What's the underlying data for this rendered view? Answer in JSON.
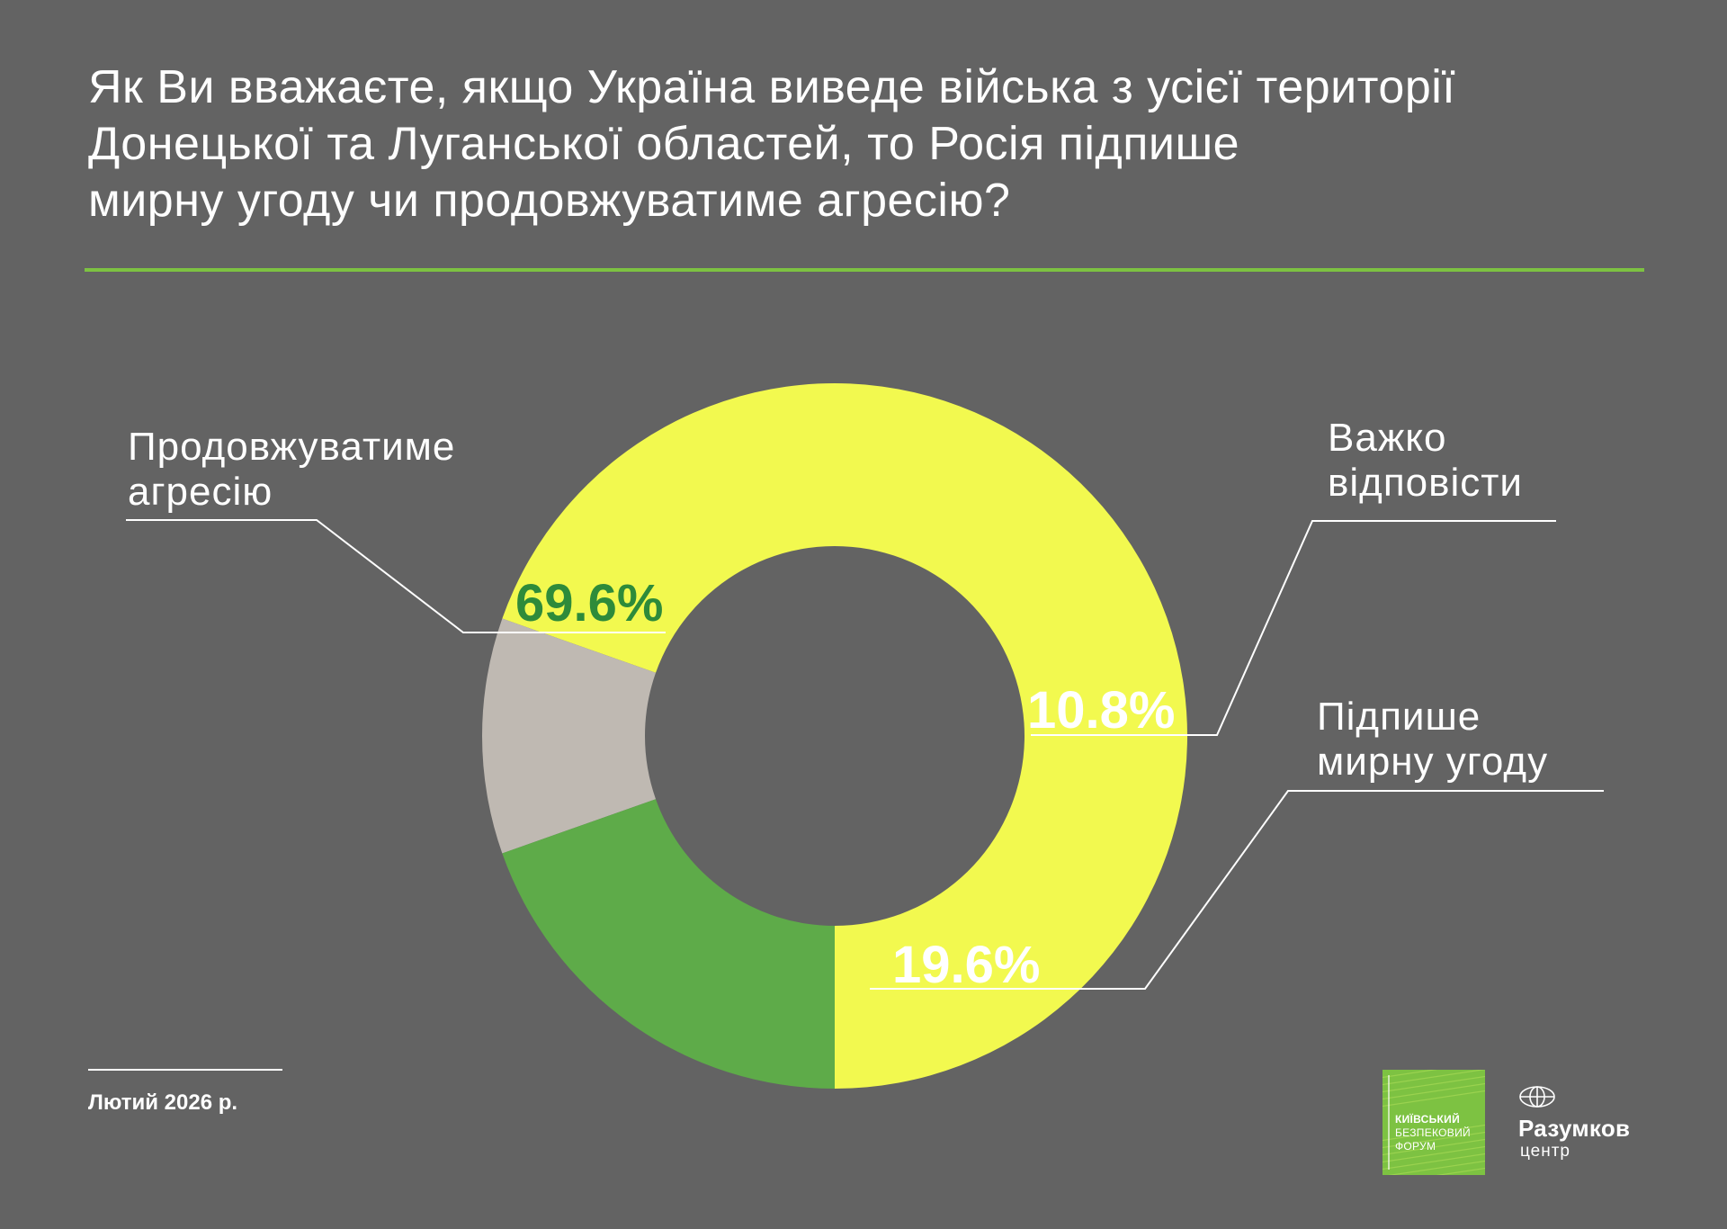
{
  "title": {
    "lines": [
      "Як Ви вважаєте, якщо Україна виведе війська з усієї території",
      "Донецької та Луганської областей, то Росія підпише",
      "мирну угоду чи продовжуватиме агресію?"
    ]
  },
  "chart_data": {
    "type": "pie",
    "donut": true,
    "categories": [
      "Продовжуватиме агресію",
      "Важко відповісти",
      "Підпише мирну угоду"
    ],
    "values": [
      69.6,
      10.8,
      19.6
    ],
    "value_labels": [
      "69.6%",
      "10.8%",
      "19.6%"
    ],
    "colors": [
      "#f2f94f",
      "#bfb9b2",
      "#5eab49"
    ],
    "label_colors": [
      "#2e8b3a",
      "#ffffff",
      "#ffffff"
    ],
    "start": "bottom, counter-clockwise",
    "legend": "callout labels"
  },
  "labels": {
    "aggression": [
      "Продовжуватиме",
      "агресію"
    ],
    "difficult": [
      "Важко",
      "відповісти"
    ],
    "peace": [
      "Підпише",
      "мирну угоду"
    ]
  },
  "footer": {
    "date": "Лютий 2026 р."
  },
  "logos": {
    "kbf": [
      "КИЇВСЬКИЙ",
      "БЕЗПЕКОВИЙ",
      "ФОРУМ"
    ],
    "razumkov_name": "Разумков",
    "razumkov_sub": "центр"
  },
  "colors": {
    "background": "#636363",
    "accent": "#7dc242"
  }
}
